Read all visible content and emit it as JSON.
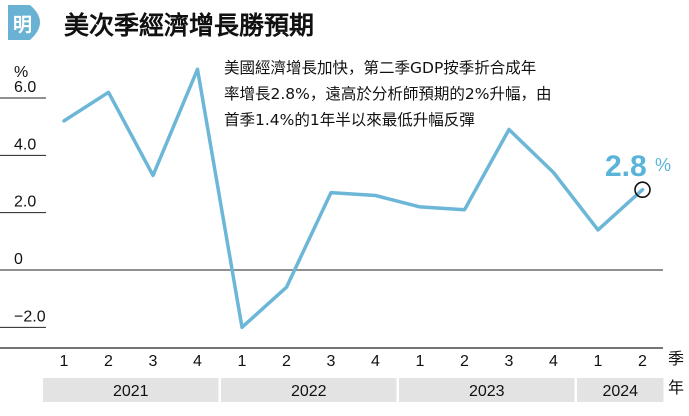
{
  "header": {
    "logo_char": "明",
    "title": "美次季經濟增長勝預期"
  },
  "annotation": {
    "lines": [
      "美國經濟增長加快，第二季GDP按季折合成年",
      "率增長2.8%，遠高於分析師預期的2%升幅，由",
      "首季1.4%的1年半以來最低升幅反彈"
    ]
  },
  "highlight": {
    "value": "2.8",
    "unit": "%"
  },
  "colors": {
    "line": "#6cb7d8",
    "highlight": "#5ab4d9",
    "year_band": "#e3e3e3",
    "logo_bg": "#6ab2d4"
  },
  "chart_data": {
    "type": "line",
    "unit_label": "%",
    "y_ticks": [
      {
        "value": 6.0,
        "label": "6.0"
      },
      {
        "value": 4.0,
        "label": "4.0"
      },
      {
        "value": 2.0,
        "label": "2.0"
      },
      {
        "value": 0,
        "label": "0"
      },
      {
        "value": -2.0,
        "label": "−2.0"
      }
    ],
    "ylim": [
      -2.8,
      7.5
    ],
    "x_axis_label_top": "季",
    "x_axis_label_bottom": "年",
    "quarters": [
      "1",
      "2",
      "3",
      "4",
      "1",
      "2",
      "3",
      "4",
      "1",
      "2",
      "3",
      "4",
      "1",
      "2"
    ],
    "years": [
      {
        "label": "2021",
        "start": 0,
        "end": 3
      },
      {
        "label": "2022",
        "start": 4,
        "end": 7
      },
      {
        "label": "2023",
        "start": 8,
        "end": 11
      },
      {
        "label": "2024",
        "start": 12,
        "end": 13
      }
    ],
    "values": [
      5.2,
      6.2,
      3.3,
      7.0,
      -2.0,
      -0.6,
      2.7,
      2.6,
      2.2,
      2.1,
      4.9,
      3.4,
      1.4,
      2.8
    ],
    "highlight_index": 13,
    "grid": false
  }
}
